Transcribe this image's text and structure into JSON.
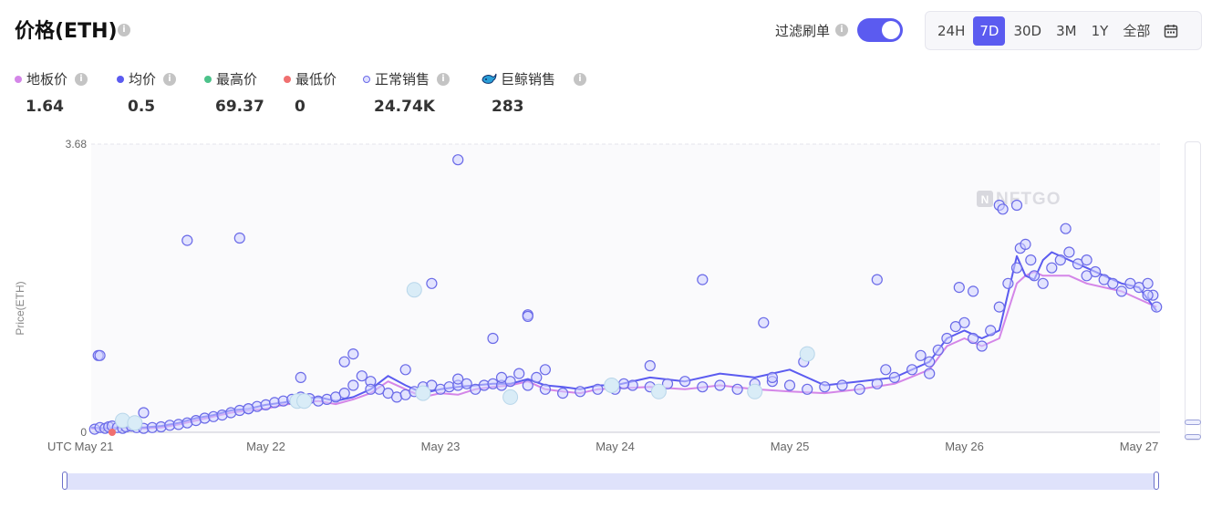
{
  "header": {
    "title": "价格(ETH)"
  },
  "filter": {
    "label": "过滤刷单",
    "enabled": true
  },
  "time_range": {
    "options": [
      "24H",
      "7D",
      "30D",
      "3M",
      "1Y",
      "全部"
    ],
    "active": "7D"
  },
  "stats": [
    {
      "label": "地板价",
      "value": "1.64",
      "color": "#d486e8",
      "marker": "dot"
    },
    {
      "label": "均价",
      "value": "0.5",
      "color": "#5b5bf0",
      "marker": "dot"
    },
    {
      "label": "最高价",
      "value": "69.37",
      "color": "#4cc28a",
      "marker": "dot"
    },
    {
      "label": "最低价",
      "value": "0",
      "color": "#f07070",
      "marker": "dot"
    },
    {
      "label": "正常销售",
      "value": "24.74K",
      "color": "#6a6ae8",
      "marker": "ring"
    },
    {
      "label": "巨鲸销售",
      "value": "283",
      "color": "#2a9fd8",
      "marker": "whale-icon"
    }
  ],
  "chart_data": {
    "type": "scatter",
    "ylabel": "Price(ETH)",
    "y_ticks": [
      "3.68",
      "0"
    ],
    "ylim": [
      0,
      3.68
    ],
    "x_first_label": "UTC",
    "x_ticks": [
      "May 21",
      "May 22",
      "May 23",
      "May 24",
      "May 25",
      "May 26",
      "May 27"
    ],
    "xlim": [
      0,
      6.12
    ],
    "watermark": "NFTGO",
    "series": [
      {
        "name": "地板价",
        "type": "line",
        "color": "#d486e8",
        "x": [
          0,
          0.1,
          0.2,
          0.3,
          0.4,
          0.5,
          0.6,
          0.7,
          0.8,
          0.9,
          1.0,
          1.1,
          1.2,
          1.3,
          1.4,
          1.5,
          1.6,
          1.7,
          1.8,
          1.9,
          2.0,
          2.1,
          2.2,
          2.3,
          2.4,
          2.5,
          2.6,
          2.7,
          2.8,
          2.9,
          3.0,
          3.2,
          3.4,
          3.6,
          3.8,
          4.0,
          4.2,
          4.4,
          4.6,
          4.8,
          4.9,
          5.0,
          5.1,
          5.2,
          5.3,
          5.35,
          5.4,
          5.45,
          5.5,
          5.6,
          5.7,
          5.8,
          5.9,
          6.0,
          6.1
        ],
        "y": [
          0.05,
          0.04,
          0.06,
          0.05,
          0.06,
          0.1,
          0.15,
          0.2,
          0.25,
          0.28,
          0.3,
          0.35,
          0.38,
          0.4,
          0.36,
          0.42,
          0.5,
          0.65,
          0.55,
          0.45,
          0.5,
          0.48,
          0.55,
          0.58,
          0.6,
          0.65,
          0.55,
          0.52,
          0.5,
          0.55,
          0.56,
          0.58,
          0.55,
          0.6,
          0.55,
          0.52,
          0.5,
          0.55,
          0.62,
          0.8,
          1.1,
          1.2,
          1.1,
          1.2,
          1.9,
          2.0,
          2.05,
          2.0,
          2.0,
          2.0,
          1.9,
          1.85,
          1.8,
          1.7,
          1.6
        ]
      },
      {
        "name": "均价",
        "type": "line",
        "color": "#5b5bf0",
        "x": [
          0,
          0.1,
          0.2,
          0.3,
          0.4,
          0.5,
          0.6,
          0.7,
          0.8,
          0.9,
          1.0,
          1.1,
          1.2,
          1.3,
          1.4,
          1.5,
          1.6,
          1.7,
          1.8,
          1.9,
          2.0,
          2.1,
          2.2,
          2.3,
          2.4,
          2.5,
          2.6,
          2.7,
          2.8,
          2.9,
          3.0,
          3.2,
          3.4,
          3.6,
          3.8,
          4.0,
          4.2,
          4.4,
          4.6,
          4.8,
          4.9,
          5.0,
          5.1,
          5.2,
          5.3,
          5.35,
          5.4,
          5.45,
          5.5,
          5.6,
          5.7,
          5.8,
          5.9,
          6.0,
          6.1
        ],
        "y": [
          0.06,
          0.05,
          0.07,
          0.06,
          0.08,
          0.12,
          0.18,
          0.22,
          0.28,
          0.3,
          0.35,
          0.38,
          0.42,
          0.45,
          0.4,
          0.45,
          0.55,
          0.72,
          0.6,
          0.5,
          0.55,
          0.58,
          0.6,
          0.62,
          0.62,
          0.68,
          0.6,
          0.58,
          0.55,
          0.6,
          0.6,
          0.7,
          0.65,
          0.75,
          0.7,
          0.8,
          0.6,
          0.65,
          0.7,
          0.9,
          1.2,
          1.3,
          1.2,
          1.3,
          2.25,
          2.0,
          1.95,
          2.2,
          2.3,
          2.2,
          2.1,
          2.0,
          1.9,
          1.85,
          1.55
        ]
      },
      {
        "name": "正常销售",
        "type": "scatter",
        "color": "#6a6ae8",
        "x": [
          0.02,
          0.05,
          0.08,
          0.1,
          0.12,
          0.15,
          0.18,
          0.2,
          0.23,
          0.26,
          0.3,
          0.35,
          0.4,
          0.45,
          0.5,
          0.55,
          0.6,
          0.65,
          0.7,
          0.75,
          0.8,
          0.85,
          0.9,
          0.95,
          1.0,
          1.05,
          1.1,
          1.15,
          1.2,
          1.25,
          1.3,
          1.35,
          1.4,
          1.45,
          1.5,
          1.55,
          1.6,
          1.65,
          1.7,
          1.75,
          1.8,
          1.85,
          1.9,
          1.95,
          2.0,
          2.05,
          2.1,
          2.15,
          2.2,
          2.25,
          2.3,
          2.35,
          2.4,
          2.5,
          2.6,
          2.7,
          2.8,
          2.9,
          3.0,
          3.1,
          3.2,
          3.3,
          3.4,
          3.5,
          3.6,
          3.7,
          3.8,
          3.9,
          4.0,
          4.1,
          4.2,
          4.3,
          4.4,
          4.5,
          4.6,
          4.7,
          4.8,
          4.85,
          4.9,
          4.95,
          5.0,
          5.05,
          5.1,
          5.15,
          5.2,
          5.25,
          5.3,
          5.32,
          5.35,
          5.38,
          5.4,
          5.45,
          5.5,
          5.55,
          5.6,
          5.65,
          5.7,
          5.75,
          5.8,
          5.85,
          5.9,
          5.95,
          6.0,
          6.05,
          6.08,
          6.1,
          0.04,
          0.55,
          1.95,
          2.3,
          2.45,
          2.6,
          3.2,
          3.85,
          4.8,
          4.97,
          5.2,
          5.22,
          5.3,
          5.58,
          0.3,
          0.9,
          1.2,
          1.6,
          1.8,
          2.1,
          2.35,
          2.55,
          3.05,
          3.9,
          4.08,
          4.55,
          4.75,
          5.05,
          5.7,
          6.05
        ],
        "y": [
          0.04,
          0.06,
          0.05,
          0.07,
          0.08,
          0.06,
          0.05,
          0.07,
          0.08,
          0.06,
          0.05,
          0.06,
          0.07,
          0.09,
          0.1,
          0.12,
          0.15,
          0.18,
          0.2,
          0.22,
          0.25,
          0.28,
          0.3,
          0.33,
          0.35,
          0.38,
          0.4,
          0.42,
          0.45,
          0.43,
          0.4,
          0.42,
          0.45,
          0.5,
          0.6,
          0.72,
          0.65,
          0.55,
          0.5,
          0.45,
          0.48,
          0.52,
          0.58,
          0.6,
          0.55,
          0.58,
          0.6,
          0.62,
          0.55,
          0.6,
          0.62,
          0.6,
          0.65,
          0.6,
          0.55,
          0.5,
          0.52,
          0.55,
          0.55,
          0.6,
          0.58,
          0.62,
          0.65,
          0.58,
          0.6,
          0.55,
          0.62,
          0.65,
          0.6,
          0.55,
          0.58,
          0.6,
          0.55,
          0.62,
          0.7,
          0.8,
          0.9,
          1.05,
          1.2,
          1.35,
          1.4,
          1.2,
          1.1,
          1.3,
          1.6,
          1.9,
          2.1,
          2.35,
          2.4,
          2.2,
          2.0,
          1.9,
          2.1,
          2.2,
          2.3,
          2.15,
          2.0,
          2.05,
          1.95,
          1.9,
          1.8,
          1.9,
          1.85,
          1.9,
          1.75,
          1.6,
          0.98,
          2.45,
          1.9,
          1.2,
          0.75,
          0.8,
          0.85,
          1.4,
          0.75,
          1.85,
          2.9,
          2.85,
          2.9,
          2.6,
          0.25,
          0.3,
          0.7,
          0.55,
          0.8,
          0.68,
          0.7,
          0.7,
          0.62,
          0.7,
          0.9,
          0.8,
          0.98,
          1.8,
          2.2,
          1.75
        ]
      },
      {
        "name": "巨鲸销售",
        "type": "scatter",
        "color": "#2a9fd8",
        "x": [
          0.18,
          1.18,
          3.8,
          4.1,
          1.85,
          1.22,
          1.9,
          2.4,
          2.98,
          3.25,
          0.25
        ],
        "y": [
          0.15,
          0.4,
          0.52,
          1.0,
          1.82,
          0.4,
          0.5,
          0.45,
          0.6,
          0.52,
          0.12
        ]
      },
      {
        "name": "最低价",
        "type": "scatter",
        "color": "#f07070",
        "x": [
          0.12
        ],
        "y": [
          0.0
        ]
      },
      {
        "name": "outliers",
        "type": "scatter",
        "color": "#6a6ae8",
        "x": [
          0.05,
          0.85,
          2.1,
          1.45,
          3.5,
          4.5,
          2.5,
          1.5,
          2.5
        ],
        "y": [
          0.98,
          2.48,
          3.48,
          0.9,
          1.95,
          1.95,
          1.5,
          1.0,
          1.48
        ]
      }
    ]
  }
}
